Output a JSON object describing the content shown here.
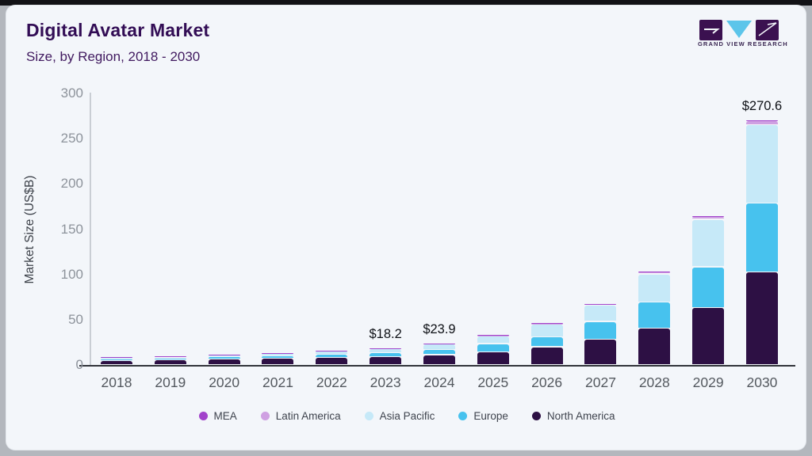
{
  "header": {
    "title": "Digital Avatar Market",
    "subtitle": "Size, by Region, 2018 - 2030"
  },
  "logo": {
    "caption": "GRAND VIEW RESEARCH"
  },
  "colors": {
    "card_bg": "#f3f6fa",
    "title": "#320d55",
    "subtitle": "#40195f",
    "axis_baseline": "#30333a",
    "y_axis_line": "#c9ced4",
    "mea": "#a243cb",
    "latin_america": "#cfa0e2",
    "asia_pacific": "#c6e9f8",
    "europe": "#47c2ee",
    "north_america": "#2d1044"
  },
  "chart_data": {
    "type": "bar",
    "stacked": true,
    "title": "Digital Avatar Market",
    "subtitle": "Size, by Region, 2018 - 2030",
    "xlabel": "",
    "ylabel": "Market Size (US$B)",
    "ylim": [
      0,
      300
    ],
    "yticks": [
      "0",
      "50",
      "100",
      "150",
      "200",
      "250",
      "300"
    ],
    "ytick_values": [
      0,
      50,
      100,
      150,
      200,
      250,
      300
    ],
    "grid": false,
    "legend_position": "bottom",
    "categories": [
      "2018",
      "2019",
      "2020",
      "2021",
      "2022",
      "2023",
      "2024",
      "2025",
      "2026",
      "2027",
      "2028",
      "2029",
      "2030"
    ],
    "stack_order_bottom_to_top": [
      "North America",
      "Europe",
      "Asia Pacific",
      "Latin America",
      "MEA"
    ],
    "legend_order": [
      "MEA",
      "Latin America",
      "Asia Pacific",
      "Europe",
      "North America"
    ],
    "series": [
      {
        "name": "North America",
        "color": "#2d1044",
        "values": [
          4.3,
          5.0,
          5.8,
          6.6,
          7.8,
          8.7,
          10.8,
          14.0,
          19.5,
          27.6,
          40.2,
          62.6,
          102.0
        ]
      },
      {
        "name": "Europe",
        "color": "#47c2ee",
        "values": [
          1.9,
          2.2,
          2.6,
          3.0,
          3.6,
          4.1,
          5.9,
          9.0,
          11.2,
          20.0,
          28.8,
          45.2,
          76.0
        ]
      },
      {
        "name": "Asia Pacific",
        "color": "#c6e9f8",
        "values": [
          2.0,
          2.4,
          2.8,
          3.3,
          4.0,
          4.7,
          6.1,
          8.7,
          13.8,
          18.0,
          31.0,
          52.6,
          87.0
        ]
      },
      {
        "name": "Latin America",
        "color": "#cfa0e2",
        "values": [
          0.2,
          0.3,
          0.3,
          0.4,
          0.4,
          0.5,
          0.8,
          1.0,
          1.2,
          1.5,
          2.2,
          2.9,
          4.2
        ]
      },
      {
        "name": "MEA",
        "color": "#a243cb",
        "values": [
          0.1,
          0.1,
          0.1,
          0.2,
          0.2,
          0.2,
          0.3,
          0.3,
          0.5,
          0.6,
          0.8,
          1.0,
          1.4
        ]
      }
    ],
    "totals": [
      8.5,
      10.0,
      11.6,
      13.5,
      16.0,
      18.2,
      23.9,
      33.0,
      46.2,
      67.7,
      103.0,
      164.3,
      270.6
    ],
    "annotations": [
      {
        "category": "2023",
        "text": "$18.2"
      },
      {
        "category": "2024",
        "text": "$23.9"
      },
      {
        "category": "2030",
        "text": "$270.6"
      }
    ]
  }
}
